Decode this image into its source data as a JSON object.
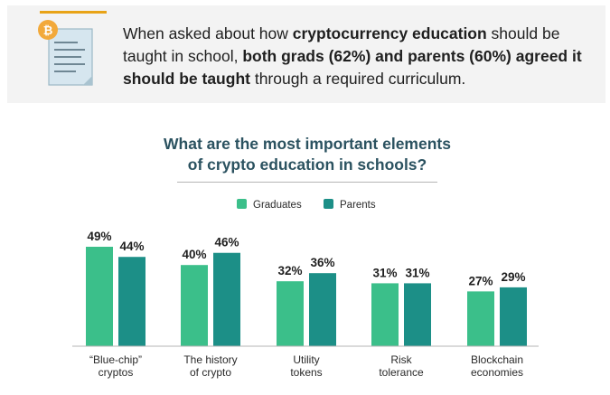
{
  "banner": {
    "t1": "When asked about how ",
    "b1": "cryptocurrency education",
    "t2": " should be taught in school, ",
    "b2": "both grads (62%) and parents (60%) agreed it should be taught",
    "t3": " through a required curriculum.",
    "icon": "bitcoin-document-icon",
    "accent_color": "#e8a317"
  },
  "chart_data": {
    "type": "bar",
    "title_line1": "What are the most important elements",
    "title_line2": "of crypto education in schools?",
    "categories": [
      [
        "“Blue-chip”",
        "cryptos"
      ],
      [
        "The history",
        "of crypto"
      ],
      [
        "Utility",
        "tokens"
      ],
      [
        "Risk",
        "tolerance"
      ],
      [
        "Blockchain",
        "economies"
      ]
    ],
    "series": [
      {
        "name": "Graduates",
        "color": "#3bbf8a",
        "values": [
          49,
          40,
          32,
          31,
          27
        ],
        "labels": [
          "49%",
          "40%",
          "32%",
          "31%",
          "27%"
        ]
      },
      {
        "name": "Parents",
        "color": "#1c8f87",
        "values": [
          44,
          46,
          36,
          31,
          29
        ],
        "labels": [
          "44%",
          "46%",
          "36%",
          "31%",
          "29%"
        ]
      }
    ],
    "ylim": [
      0,
      50
    ],
    "grid": false,
    "legend_position": "top-center"
  }
}
